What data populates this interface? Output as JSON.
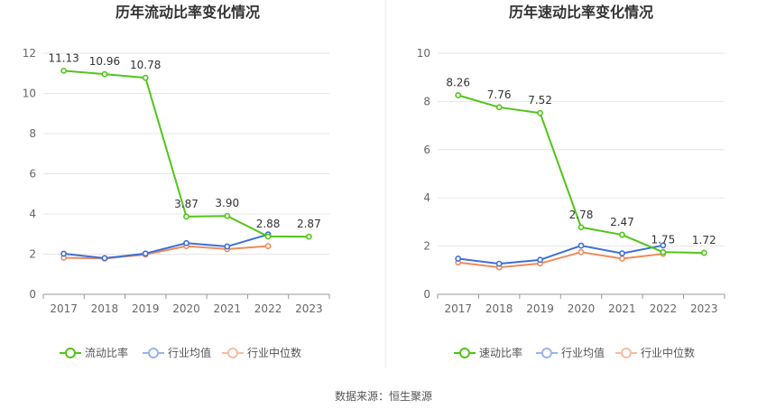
{
  "source": "数据来源：恒生聚源",
  "chart_data": [
    {
      "type": "line",
      "title": "历年流动比率变化情况",
      "categories": [
        "2017",
        "2018",
        "2019",
        "2020",
        "2021",
        "2022",
        "2023"
      ],
      "ylim": [
        0,
        12
      ],
      "yticks": [
        0,
        2,
        4,
        6,
        8,
        10,
        12
      ],
      "grid": true,
      "legend": "bottom",
      "series": [
        {
          "name": "流动比率",
          "color": "#52c41a",
          "values": [
            11.13,
            10.96,
            10.78,
            3.87,
            3.9,
            2.88,
            2.87
          ],
          "labels": [
            "11.13",
            "10.96",
            "10.78",
            "3.87",
            "3.90",
            "2.88",
            "2.87"
          ]
        },
        {
          "name": "行业均值",
          "color": "#3e6fd6",
          "values": [
            2.02,
            1.8,
            2.03,
            2.55,
            2.38,
            2.98,
            null
          ]
        },
        {
          "name": "行业中位数",
          "color": "#f08a5d",
          "values": [
            1.82,
            1.78,
            1.98,
            2.4,
            2.25,
            2.4,
            null
          ]
        }
      ]
    },
    {
      "type": "line",
      "title": "历年速动比率变化情况",
      "categories": [
        "2017",
        "2018",
        "2019",
        "2020",
        "2021",
        "2022",
        "2023"
      ],
      "ylim": [
        0,
        10
      ],
      "yticks": [
        0,
        2,
        4,
        6,
        8,
        10
      ],
      "grid": true,
      "legend": "bottom",
      "series": [
        {
          "name": "速动比率",
          "color": "#52c41a",
          "values": [
            8.26,
            7.76,
            7.52,
            2.78,
            2.47,
            1.75,
            1.72
          ],
          "labels": [
            "8.26",
            "7.76",
            "7.52",
            "2.78",
            "2.47",
            "1.75",
            "1.72"
          ]
        },
        {
          "name": "行业均值",
          "color": "#3e6fd6",
          "values": [
            1.48,
            1.27,
            1.43,
            2.02,
            1.7,
            2.03,
            null
          ]
        },
        {
          "name": "行业中位数",
          "color": "#f08a5d",
          "values": [
            1.32,
            1.12,
            1.28,
            1.75,
            1.48,
            1.68,
            null
          ]
        }
      ]
    }
  ]
}
